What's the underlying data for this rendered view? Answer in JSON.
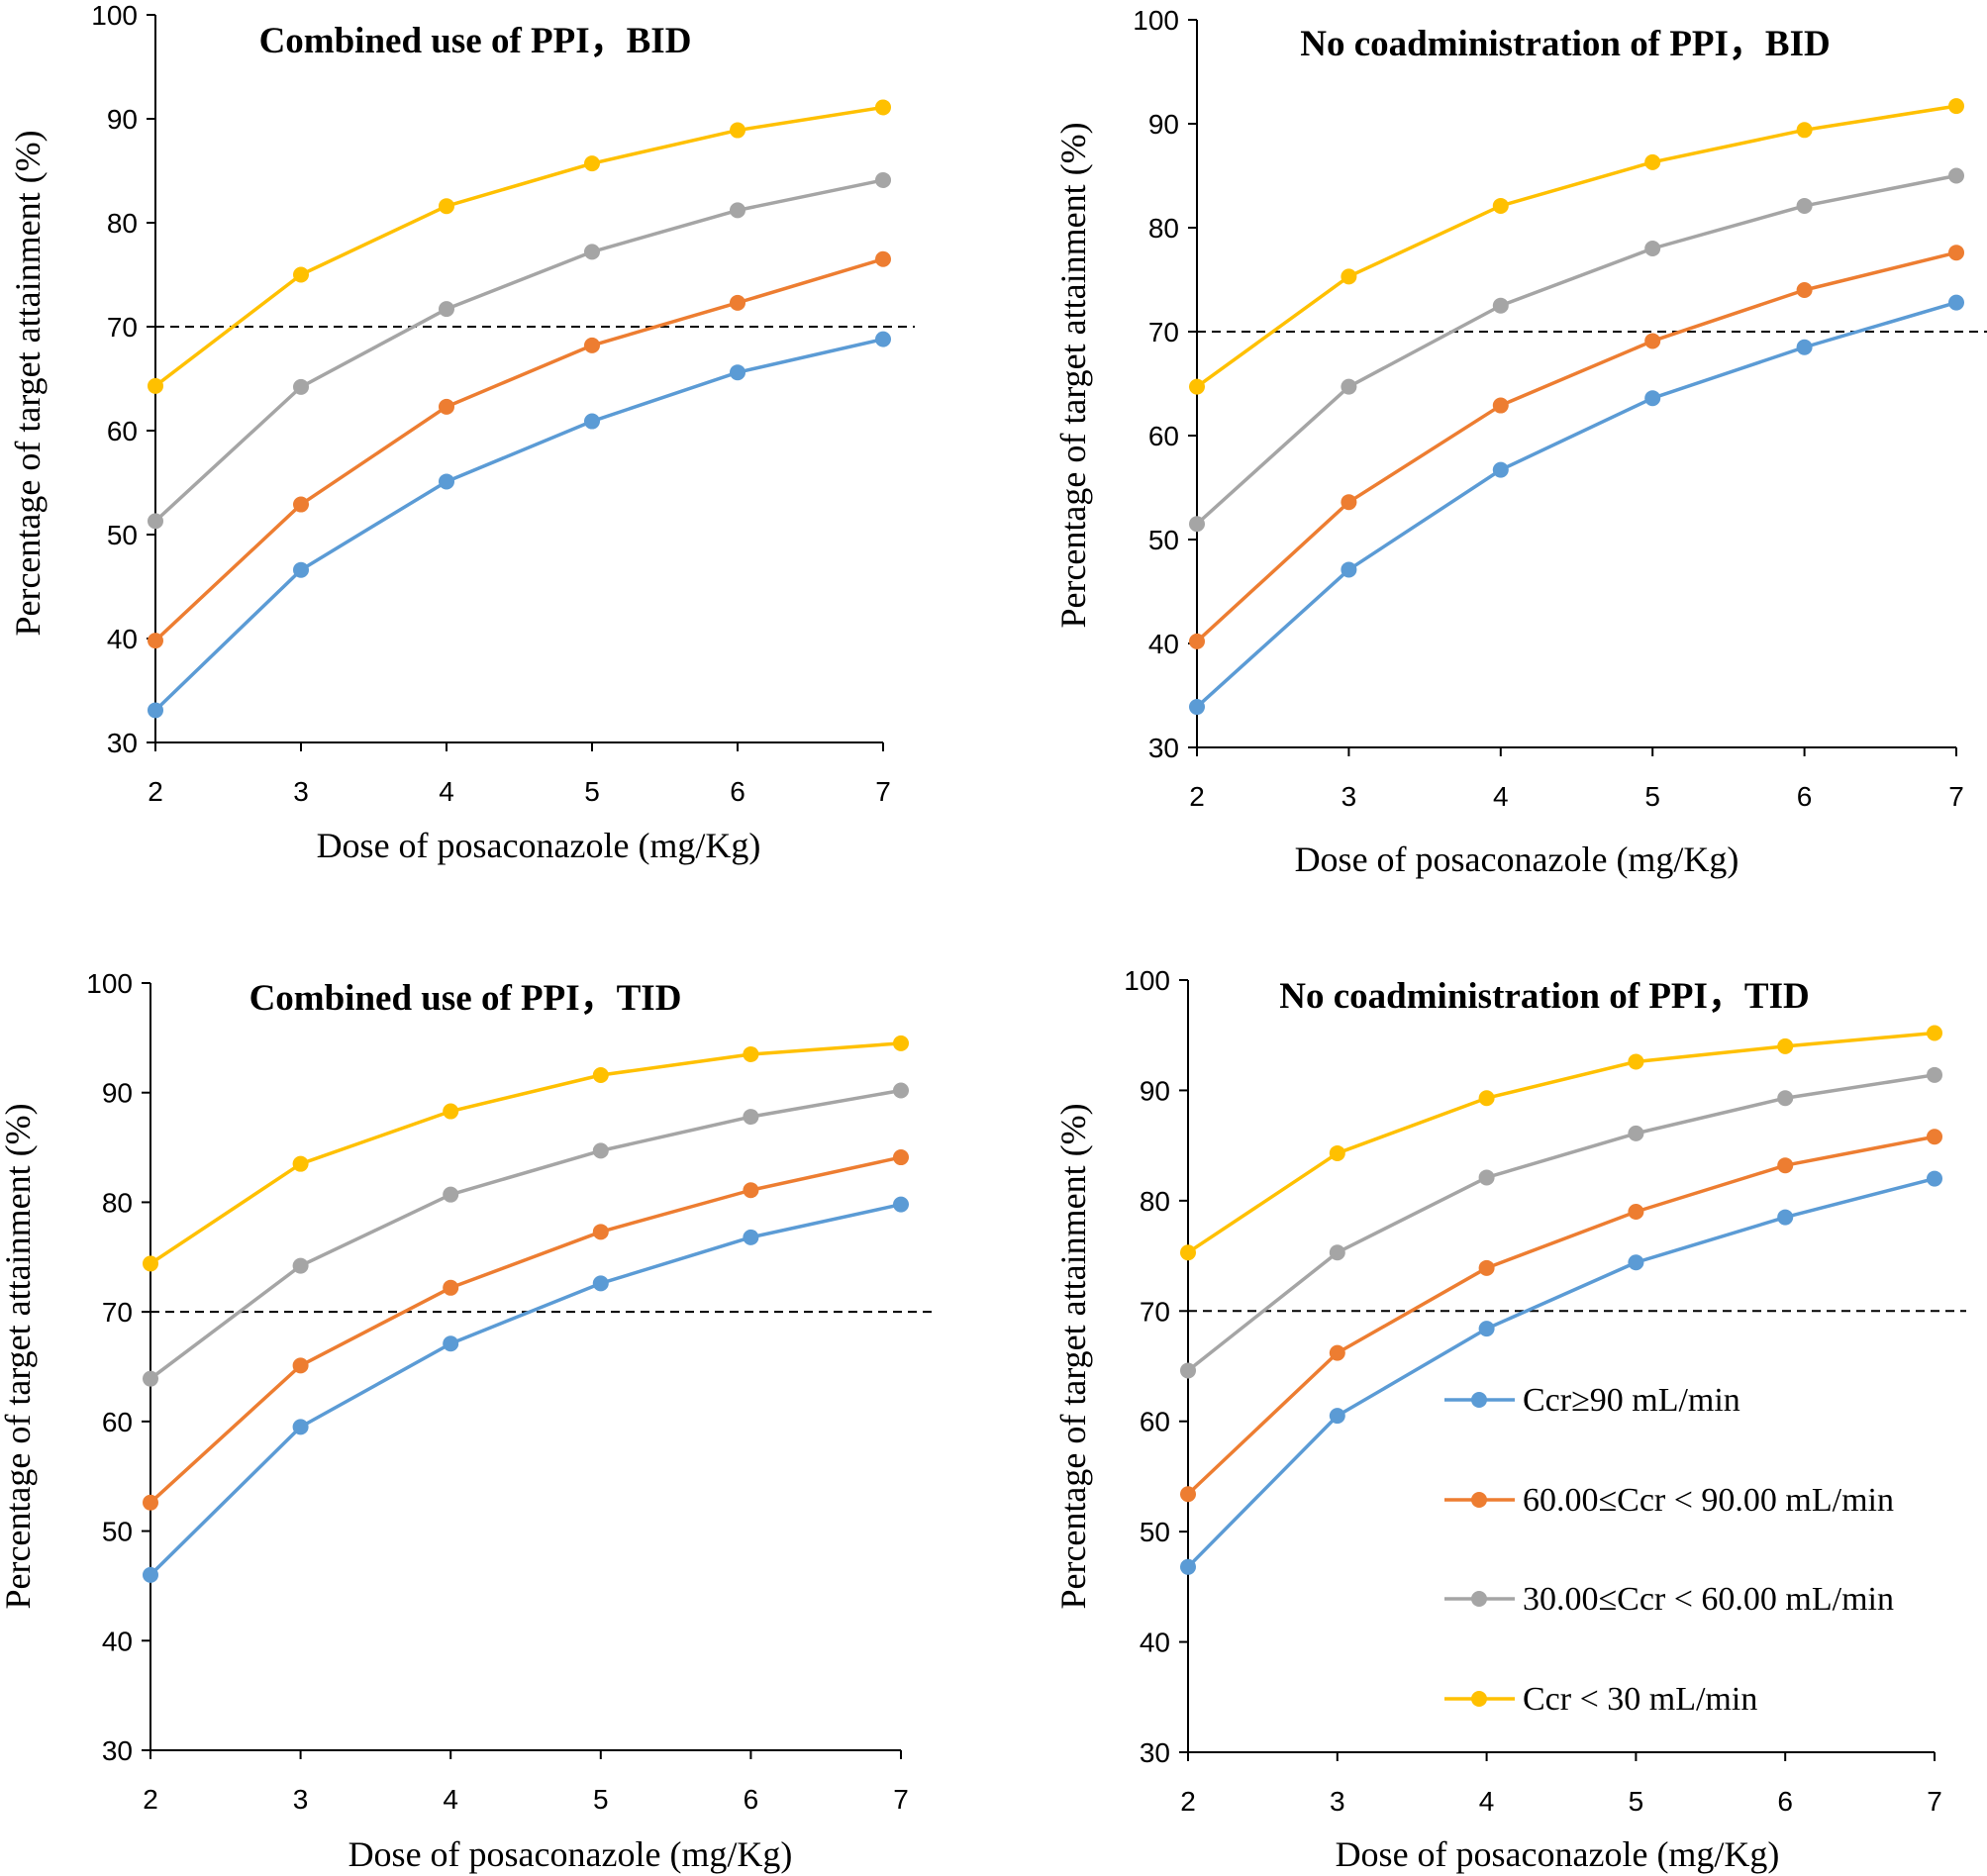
{
  "figure": {
    "colors": {
      "Ccr≥90 mL/min": "#5B9BD5",
      "60.00≤Ccr < 90.00 mL/min": "#ED7D31",
      "30.00≤Ccr < 60.00 mL/min": "#A5A5A5",
      "Ccr < 30 mL/min": "#FFC000",
      "axis": "#000000",
      "reference_line": "#000000"
    },
    "legend": {
      "location": "bottom-right panel, lower-right",
      "items": [
        "Ccr≥90 mL/min",
        "60.00≤Ccr < 90.00 mL/min",
        "30.00≤Ccr < 60.00 mL/min",
        "Ccr < 30 mL/min"
      ]
    }
  },
  "chart_data": [
    {
      "type": "line",
      "title": "Combined use of PPI，BID",
      "xlabel": "Dose of posaconazole (mg/Kg)",
      "ylabel": "Percentage of target attainment (%)",
      "x": [
        2,
        3,
        4,
        5,
        6,
        7
      ],
      "ylim": [
        30,
        100
      ],
      "yticks": [
        30,
        40,
        50,
        60,
        70,
        80,
        90,
        100
      ],
      "reference_line": 70,
      "series": [
        {
          "name": "Ccr≥90 mL/min",
          "values": [
            33.1,
            46.6,
            55.1,
            60.9,
            65.6,
            68.8
          ]
        },
        {
          "name": "60.00≤Ccr < 90.00 mL/min",
          "values": [
            39.8,
            52.9,
            62.3,
            68.2,
            72.3,
            76.5
          ]
        },
        {
          "name": "30.00≤Ccr < 60.00 mL/min",
          "values": [
            51.3,
            64.2,
            71.7,
            77.2,
            81.2,
            84.1
          ]
        },
        {
          "name": "Ccr < 30 mL/min",
          "values": [
            64.3,
            75.0,
            81.6,
            85.7,
            88.9,
            91.1
          ]
        }
      ]
    },
    {
      "type": "line",
      "title": "No coadministration of PPI，BID",
      "xlabel": "Dose of posaconazole (mg/Kg)",
      "ylabel": "Percentage of target attainment (%)",
      "x": [
        2,
        3,
        4,
        5,
        6,
        7
      ],
      "ylim": [
        30,
        100
      ],
      "yticks": [
        30,
        40,
        50,
        60,
        70,
        80,
        90,
        100
      ],
      "reference_line": 70,
      "series": [
        {
          "name": "Ccr≥90 mL/min",
          "values": [
            33.9,
            47.1,
            56.7,
            63.6,
            68.5,
            72.8
          ]
        },
        {
          "name": "60.00≤Ccr < 90.00 mL/min",
          "values": [
            40.2,
            53.6,
            62.9,
            69.1,
            74.0,
            77.6
          ]
        },
        {
          "name": "30.00≤Ccr < 60.00 mL/min",
          "values": [
            51.5,
            64.7,
            72.5,
            78.0,
            82.1,
            85.0
          ]
        },
        {
          "name": "Ccr < 30 mL/min",
          "values": [
            64.7,
            75.3,
            82.1,
            86.3,
            89.4,
            91.7
          ]
        }
      ]
    },
    {
      "type": "line",
      "title": "Combined use of PPI，TID",
      "xlabel": "Dose of posaconazole (mg/Kg)",
      "ylabel": "Percentage of target attainment (%)",
      "x": [
        2,
        3,
        4,
        5,
        6,
        7
      ],
      "ylim": [
        30,
        100
      ],
      "yticks": [
        30,
        40,
        50,
        60,
        70,
        80,
        90,
        100
      ],
      "reference_line": 70,
      "series": [
        {
          "name": "Ccr≥90 mL/min",
          "values": [
            46.0,
            59.5,
            67.1,
            72.6,
            76.8,
            79.8
          ]
        },
        {
          "name": "60.00≤Ccr < 90.00 mL/min",
          "values": [
            52.6,
            65.1,
            72.2,
            77.3,
            81.1,
            84.1
          ]
        },
        {
          "name": "30.00≤Ccr < 60.00 mL/min",
          "values": [
            63.9,
            74.2,
            80.7,
            84.7,
            87.8,
            90.2
          ]
        },
        {
          "name": "Ccr < 30 mL/min",
          "values": [
            74.4,
            83.5,
            88.3,
            91.6,
            93.5,
            94.5
          ]
        }
      ]
    },
    {
      "type": "line",
      "title": "No coadministration of PPI，TID",
      "xlabel": "Dose of posaconazole (mg/Kg)",
      "ylabel": "Percentage of target attainment (%)",
      "x": [
        2,
        3,
        4,
        5,
        6,
        7
      ],
      "ylim": [
        30,
        100
      ],
      "yticks": [
        30,
        40,
        50,
        60,
        70,
        80,
        90,
        100
      ],
      "reference_line": 70,
      "series": [
        {
          "name": "Ccr≥90 mL/min",
          "values": [
            46.8,
            60.5,
            68.4,
            74.4,
            78.5,
            82.0
          ]
        },
        {
          "name": "60.00≤Ccr < 90.00 mL/min",
          "values": [
            53.4,
            66.2,
            73.9,
            79.0,
            83.2,
            85.8
          ]
        },
        {
          "name": "30.00≤Ccr < 60.00 mL/min",
          "values": [
            64.6,
            75.3,
            82.1,
            86.1,
            89.3,
            91.4
          ]
        },
        {
          "name": "Ccr < 30 mL/min",
          "values": [
            75.3,
            84.3,
            89.3,
            92.6,
            94.0,
            95.2
          ]
        }
      ]
    }
  ]
}
